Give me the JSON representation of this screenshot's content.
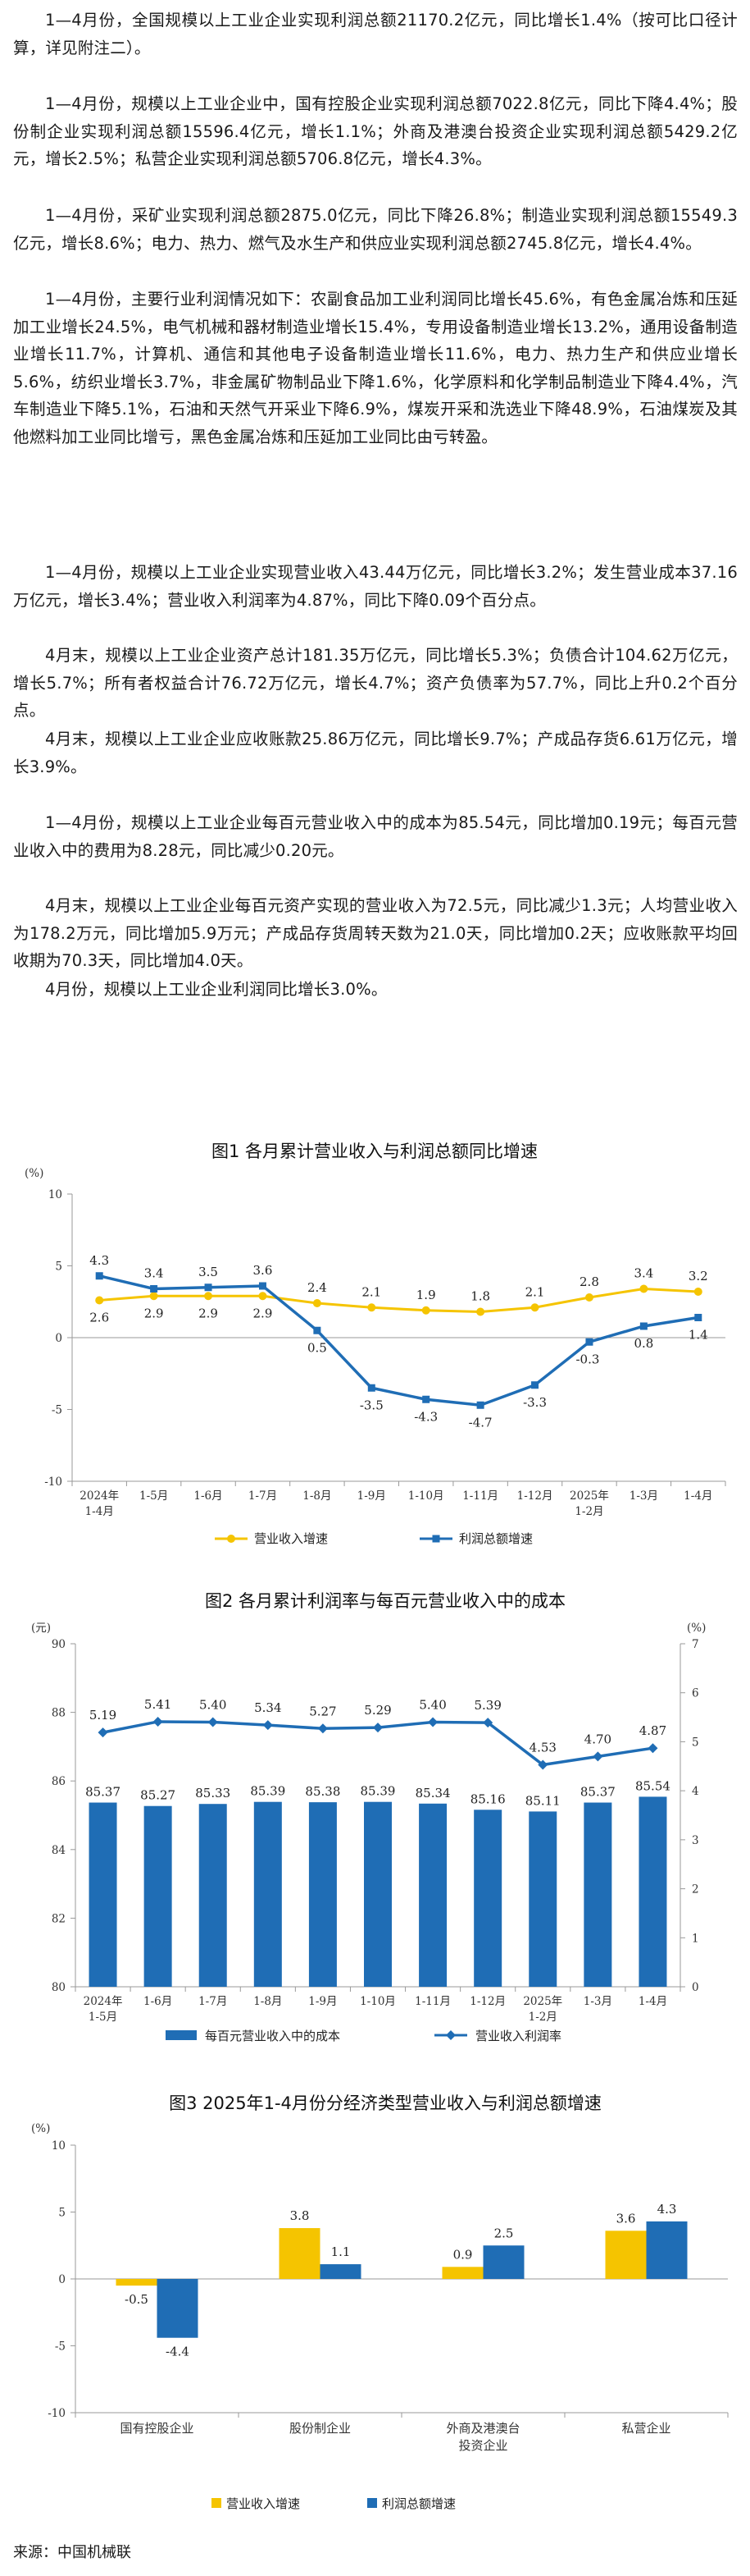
{
  "paragraphs": [
    "1—4月份，全国规模以上工业企业实现利润总额21170.2亿元，同比增长1.4%（按可比口径计算，详见附注二）。",
    "1—4月份，规模以上工业企业中，国有控股企业实现利润总额7022.8亿元，同比下降4.4%；股份制企业实现利润总额15596.4亿元，增长1.1%；外商及港澳台投资企业实现利润总额5429.2亿元，增长2.5%；私营企业实现利润总额5706.8亿元，增长4.3%。",
    "1—4月份，采矿业实现利润总额2875.0亿元，同比下降26.8%；制造业实现利润总额15549.3亿元，增长8.6%；电力、热力、燃气及水生产和供应业实现利润总额2745.8亿元，增长4.4%。",
    "1—4月份，主要行业利润情况如下：农副食品加工业利润同比增长45.6%，有色金属冶炼和压延加工业增长24.5%，电气机械和器材制造业增长15.4%，专用设备制造业增长13.2%，通用设备制造业增长11.7%，计算机、通信和其他电子设备制造业增长11.6%，电力、热力生产和供应业增长5.6%，纺织业增长3.7%，非金属矿物制品业下降1.6%，化学原料和化学制品制造业下降4.4%，汽车制造业下降5.1%，石油和天然气开采业下降6.9%，煤炭开采和洗选业下降48.9%，石油煤炭及其他燃料加工业同比增亏，黑色金属冶炼和压延加工业同比由亏转盈。",
    "1—4月份，规模以上工业企业实现营业收入43.44万亿元，同比增长3.2%；发生营业成本37.16万亿元，增长3.4%；营业收入利润率为4.87%，同比下降0.09个百分点。",
    "4月末，规模以上工业企业资产总计181.35万亿元，同比增长5.3%；负债合计104.62万亿元，增长5.7%；所有者权益合计76.72万亿元，增长4.7%；资产负债率为57.7%，同比上升0.2个百分点。",
    "4月末，规模以上工业企业应收账款25.86万亿元，同比增长9.7%；产成品存货6.61万亿元，增长3.9%。",
    "1—4月份，规模以上工业企业每百元营业收入中的成本为85.54元，同比增加0.19元；每百元营业收入中的费用为8.28元，同比减少0.20元。",
    "4月末，规模以上工业企业每百元资产实现的营业收入为72.5元，同比减少1.3元；人均营业收入为178.2万元，同比增加5.9万元；产成品存货周转天数为21.0天，同比增加0.2天；应收账款平均回收期为70.3天，同比增加4.0天。",
    "4月份，规模以上工业企业利润同比增长3.0%。"
  ],
  "source": "来源：中国机械联",
  "colors": {
    "yellow": "#F5C400",
    "blue": "#1F6DB5",
    "axis": "#999999"
  },
  "chart_data": [
    {
      "type": "line",
      "title": "图1  各月累计营业收入与利润总额同比增速",
      "ylabel": "(%)",
      "ylim": [
        -10,
        10
      ],
      "yticks": [
        "10",
        "5",
        "0",
        "-5",
        "-10"
      ],
      "categories": [
        [
          "2024年",
          "1-4月"
        ],
        [
          "1-5月"
        ],
        [
          "1-6月"
        ],
        [
          "1-7月"
        ],
        [
          "1-8月"
        ],
        [
          "1-9月"
        ],
        [
          "1-10月"
        ],
        [
          "1-11月"
        ],
        [
          "1-12月"
        ],
        [
          "2025年",
          "1-2月"
        ],
        [
          "1-3月"
        ],
        [
          "1-4月"
        ]
      ],
      "series": [
        {
          "name": "营业收入增速",
          "color": "#F5C400",
          "values": [
            2.6,
            2.9,
            2.9,
            2.9,
            2.4,
            2.1,
            1.9,
            1.8,
            2.1,
            2.8,
            3.4,
            3.2
          ],
          "labels": [
            "2.6",
            "2.9",
            "2.9",
            "2.9",
            "2.4",
            "2.1",
            "1.9",
            "1.8",
            "2.1",
            "2.8",
            "3.4",
            "3.2"
          ]
        },
        {
          "name": "利润总额增速",
          "color": "#1F6DB5",
          "values": [
            4.3,
            3.4,
            3.5,
            3.6,
            0.5,
            -3.5,
            -4.3,
            -4.7,
            -3.3,
            -0.3,
            0.8,
            1.4
          ],
          "labels": [
            "4.3",
            "3.4",
            "3.5",
            "3.6",
            "0.5",
            "-3.5",
            "-4.3",
            "-4.7",
            "-3.3",
            "-0.3",
            "0.8",
            "1.4"
          ]
        }
      ],
      "legend": "bottom"
    },
    {
      "type": "bar+line",
      "title": "图2  各月累计利润率与每百元营业收入中的成本",
      "ylabel_left": "(元)",
      "ylabel_right": "(%)",
      "ylim_left": [
        80,
        90
      ],
      "ylim_right": [
        0,
        7
      ],
      "yticks_left": [
        "90",
        "88",
        "86",
        "84",
        "82",
        "80"
      ],
      "yticks_right": [
        "7",
        "6",
        "5",
        "4",
        "3",
        "2",
        "1",
        "0"
      ],
      "categories": [
        [
          "2024年",
          "1-5月"
        ],
        [
          "1-6月"
        ],
        [
          "1-7月"
        ],
        [
          "1-8月"
        ],
        [
          "1-9月"
        ],
        [
          "1-10月"
        ],
        [
          "1-11月"
        ],
        [
          "1-12月"
        ],
        [
          "2025年",
          "1-2月"
        ],
        [
          "1-3月"
        ],
        [
          "1-4月"
        ]
      ],
      "bar_series": {
        "name": "每百元营业收入中的成本",
        "color": "#1F6DB5",
        "values": [
          85.37,
          85.27,
          85.33,
          85.39,
          85.38,
          85.39,
          85.34,
          85.16,
          85.11,
          85.37,
          85.54
        ],
        "labels": [
          "85.37",
          "85.27",
          "85.33",
          "85.39",
          "85.38",
          "85.39",
          "85.34",
          "85.16",
          "85.11",
          "85.37",
          "85.54"
        ]
      },
      "line_series": {
        "name": "营业收入利润率",
        "color": "#1F6DB5",
        "values": [
          5.19,
          5.41,
          5.4,
          5.34,
          5.27,
          5.29,
          5.4,
          5.39,
          4.53,
          4.7,
          4.87
        ],
        "labels": [
          "5.19",
          "5.41",
          "5.40",
          "5.34",
          "5.27",
          "5.29",
          "5.40",
          "5.39",
          "4.53",
          "4.70",
          "4.87"
        ]
      },
      "legend": "bottom"
    },
    {
      "type": "bar",
      "title": "图3  2025年1-4月份分经济类型营业收入与利润总额增速",
      "ylabel": "(%)",
      "ylim": [
        -10,
        10
      ],
      "yticks": [
        "10",
        "5",
        "0",
        "-5",
        "-10"
      ],
      "categories": [
        [
          "国有控股企业"
        ],
        [
          "股份制企业"
        ],
        [
          "外商及港澳台",
          "投资企业"
        ],
        [
          "私营企业"
        ]
      ],
      "series": [
        {
          "name": "营业收入增速",
          "color": "#F5C400",
          "values": [
            -0.5,
            3.8,
            0.9,
            3.6
          ],
          "labels": [
            "-0.5",
            "3.8",
            "0.9",
            "3.6"
          ]
        },
        {
          "name": "利润总额增速",
          "color": "#1F6DB5",
          "values": [
            -4.4,
            1.1,
            2.5,
            4.3
          ],
          "labels": [
            "-4.4",
            "1.1",
            "2.5",
            "4.3"
          ]
        }
      ],
      "legend": "bottom"
    }
  ]
}
